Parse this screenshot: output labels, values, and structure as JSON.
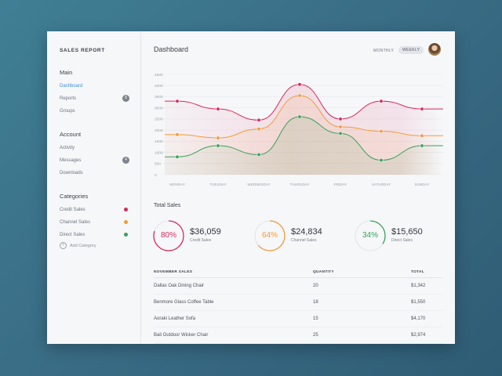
{
  "sidebar": {
    "title": "SALES REPORT",
    "sections": [
      {
        "title": "Main",
        "items": [
          {
            "label": "Dashboard",
            "active": true
          },
          {
            "label": "Reports",
            "badge": "8"
          },
          {
            "label": "Groups"
          }
        ]
      },
      {
        "title": "Account",
        "items": [
          {
            "label": "Activity"
          },
          {
            "label": "Messages",
            "badge": "4"
          },
          {
            "label": "Downloads"
          }
        ]
      },
      {
        "title": "Categories",
        "items": [
          {
            "label": "Credit Sales",
            "color": "#d8285a"
          },
          {
            "label": "Channel Sales",
            "color": "#f49a3a"
          },
          {
            "label": "Direct Sales",
            "color": "#3aa05a"
          }
        ]
      }
    ],
    "add_category": "Add Category"
  },
  "header": {
    "title": "Dashboard",
    "period_monthly": "MONTHLY",
    "period_weekly": "WEEKLY"
  },
  "chart_data": {
    "type": "line",
    "categories": [
      "MONDAY",
      "TUESDAY",
      "WEDNESDAY",
      "THURSDAY",
      "FRIDAY",
      "SATURDAY",
      "SUNDAY"
    ],
    "y_ticks": [
      "0",
      "500",
      "1000",
      "1500",
      "2000",
      "2500",
      "3000",
      "3500",
      "4000",
      "4500"
    ],
    "ylim": [
      0,
      4500
    ],
    "grid": true,
    "series": [
      {
        "name": "Credit Sales",
        "color": "#d8285a",
        "values": [
          3300,
          2950,
          2450,
          4050,
          2500,
          3300,
          2950
        ]
      },
      {
        "name": "Channel Sales",
        "color": "#f49a3a",
        "values": [
          1800,
          1650,
          2050,
          3550,
          2150,
          1950,
          1750
        ]
      },
      {
        "name": "Direct Sales",
        "color": "#3aa05a",
        "values": [
          800,
          1300,
          900,
          2600,
          1850,
          650,
          1300
        ]
      }
    ]
  },
  "totals": {
    "title": "Total Sales",
    "stats": [
      {
        "pct": "80%",
        "pct_value": 0.8,
        "amount": "$36,059",
        "label": "Credit Sales",
        "color": "#d8285a"
      },
      {
        "pct": "64%",
        "pct_value": 0.64,
        "amount": "$24,834",
        "label": "Channel Sales",
        "color": "#f49a3a"
      },
      {
        "pct": "34%",
        "pct_value": 0.34,
        "amount": "$15,650",
        "label": "Direct Sales",
        "color": "#3aa05a"
      }
    ]
  },
  "table": {
    "headers": [
      "NOVEMBER SALES",
      "QUANTITY",
      "TOTAL"
    ],
    "rows": [
      [
        "Dallas Oak Dining Chair",
        "20",
        "$1,342"
      ],
      [
        "Benmore Glass Coffee Table",
        "18",
        "$1,550"
      ],
      [
        "Aoraki Leather Sofa",
        "15",
        "$4,170"
      ],
      [
        "Bali Outdoor Wicker Chair",
        "25",
        "$2,974"
      ]
    ]
  }
}
